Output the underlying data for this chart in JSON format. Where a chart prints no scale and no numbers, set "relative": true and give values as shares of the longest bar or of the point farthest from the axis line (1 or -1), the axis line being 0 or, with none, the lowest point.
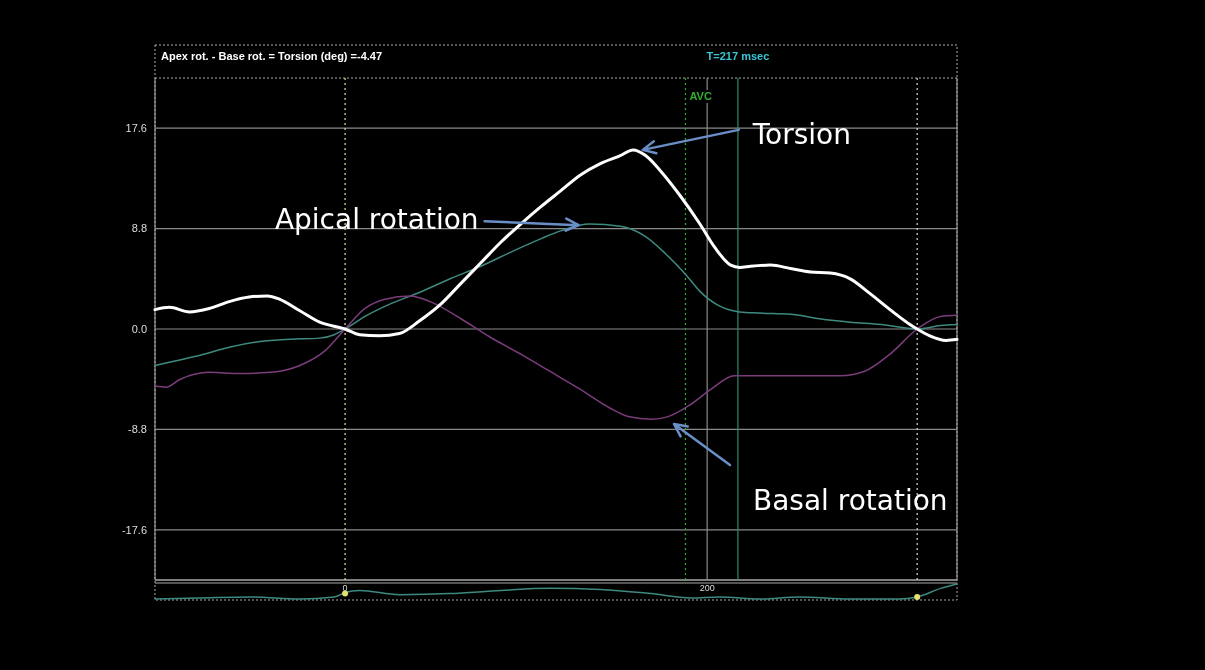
{
  "chart_data": [
    {
      "type": "line",
      "title": "Apex rot. - Base rot. = Torsion (deg) =-4.47",
      "xlim": [
        -105,
        338
      ],
      "tick_labels": "y",
      "ylim": [
        -22,
        22
      ],
      "yticks": [
        {
          "value": 17.6,
          "label": "17.6"
        },
        8.8,
        {
          "value": 0,
          "label": "0.0"
        },
        -8.8,
        {
          "value": -17.6,
          "label": "-17.6"
        }
      ],
      "grid": "y",
      "marker": "none",
      "line_style": "solid",
      "series": [
        {
          "color": "#3e8a80",
          "x": [
            -105,
            -94,
            -80,
            -64,
            -47,
            -30,
            -14,
            -6,
            0,
            11,
            25,
            41,
            58,
            75,
            91,
            108,
            119,
            135,
            152,
            166,
            177,
            188,
            196,
            207,
            218,
            229,
            246,
            262,
            279,
            296,
            316,
            329,
            338
          ],
          "values": [
            -3.2,
            -2.8,
            -2.3,
            -1.6,
            -1.1,
            -0.9,
            -0.8,
            -0.5,
            0,
            1.1,
            2.2,
            3.2,
            4.4,
            5.5,
            6.7,
            7.9,
            8.6,
            9.2,
            9.0,
            8.1,
            6.6,
            4.8,
            3.3,
            2.0,
            1.5,
            1.4,
            1.3,
            0.9,
            0.6,
            0.4,
            0,
            0.3,
            0.4
          ]
        },
        {
          "color": "#7a3c7a",
          "x": [
            -105,
            -99,
            -91,
            -75,
            -58,
            -41,
            -25,
            -11,
            0,
            11,
            22,
            36,
            47,
            64,
            80,
            97,
            113,
            130,
            146,
            157,
            169,
            178,
            191,
            202,
            215,
            229,
            251,
            273,
            287,
            301,
            316,
            329,
            338
          ],
          "values": [
            -5.0,
            -5.1,
            -4.4,
            -3.8,
            -3.9,
            -3.8,
            -3.2,
            -1.9,
            0,
            1.8,
            2.6,
            2.9,
            2.4,
            0.9,
            -0.7,
            -2.2,
            -3.7,
            -5.3,
            -6.9,
            -7.7,
            -7.9,
            -7.7,
            -6.6,
            -5.3,
            -4.1,
            -4.1,
            -4.1,
            -4.1,
            -3.7,
            -2.2,
            0,
            1.1,
            1.2
          ]
        },
        {
          "color": "#ffffff",
          "x": [
            -105,
            -97,
            -86,
            -75,
            -64,
            -53,
            -43,
            -36,
            -25,
            -14,
            0,
            8,
            19,
            30,
            41,
            53,
            64,
            75,
            86,
            97,
            108,
            119,
            130,
            141,
            152,
            159,
            166,
            174,
            185,
            196,
            204,
            213,
            218,
            224,
            235,
            246,
            257,
            268,
            279,
            290,
            301,
            312,
            316,
            323,
            332,
            338
          ],
          "values": [
            1.7,
            1.9,
            1.5,
            1.8,
            2.4,
            2.8,
            2.9,
            2.6,
            1.6,
            0.6,
            0,
            -0.5,
            -0.6,
            -0.4,
            0.7,
            2.2,
            4.0,
            5.8,
            7.6,
            9.2,
            10.7,
            12.1,
            13.5,
            14.5,
            15.2,
            15.7,
            15.2,
            13.9,
            11.7,
            9.2,
            7.2,
            5.6,
            5.4,
            5.5,
            5.6,
            5.3,
            5.0,
            4.9,
            4.4,
            3.1,
            1.7,
            0.4,
            0,
            -0.6,
            -1.0,
            -0.9
          ]
        }
      ],
      "ref_lines": [
        {
          "axis": "x",
          "value": 0,
          "color": "#e8e0a0",
          "line_style": "dotted"
        },
        {
          "axis": "x",
          "value": 188,
          "label": "AVC",
          "color": "#30b030",
          "line_style": "dotted"
        },
        {
          "axis": "x",
          "value": 200,
          "color": "#8a8a8a",
          "line_style": "solid"
        },
        {
          "axis": "x",
          "value": 217,
          "label": "T=217 msec",
          "color": "#2f8a6a",
          "line_style": "solid"
        },
        {
          "axis": "x",
          "value": 316,
          "color": "#d8d8d8",
          "line_style": "dotted"
        }
      ],
      "annotations": [
        {
          "text": "Torsion",
          "x": 160,
          "y": 15.7
        },
        {
          "text": "Apical rotation",
          "x": 129,
          "y": 9.1
        },
        "Basal rotation"
      ]
    },
    {
      "type": "line",
      "relative": true,
      "xlim": [
        -105,
        338
      ],
      "xticks": [
        0,
        200
      ],
      "series": [
        {
          "color": "#3e8a80",
          "x": [
            -105,
            -80,
            -52,
            -25,
            -6,
            0,
            8,
            30,
            58,
            86,
            113,
            141,
            169,
            191,
            207,
            229,
            251,
            279,
            306,
            316,
            329,
            338
          ],
          "values": [
            0,
            0.07,
            0.14,
            0,
            0.14,
            0.43,
            0.57,
            0.29,
            0.36,
            0.57,
            0.71,
            0.64,
            0.36,
            0.07,
            0.14,
            0,
            0.14,
            0,
            0,
            0.14,
            0.71,
            1
          ]
        },
        {
          "type": "scatter",
          "color": "#e8e070",
          "marker": "circle",
          "x": [
            0,
            316
          ],
          "values": [
            0.36,
            0.14
          ]
        }
      ]
    }
  ]
}
